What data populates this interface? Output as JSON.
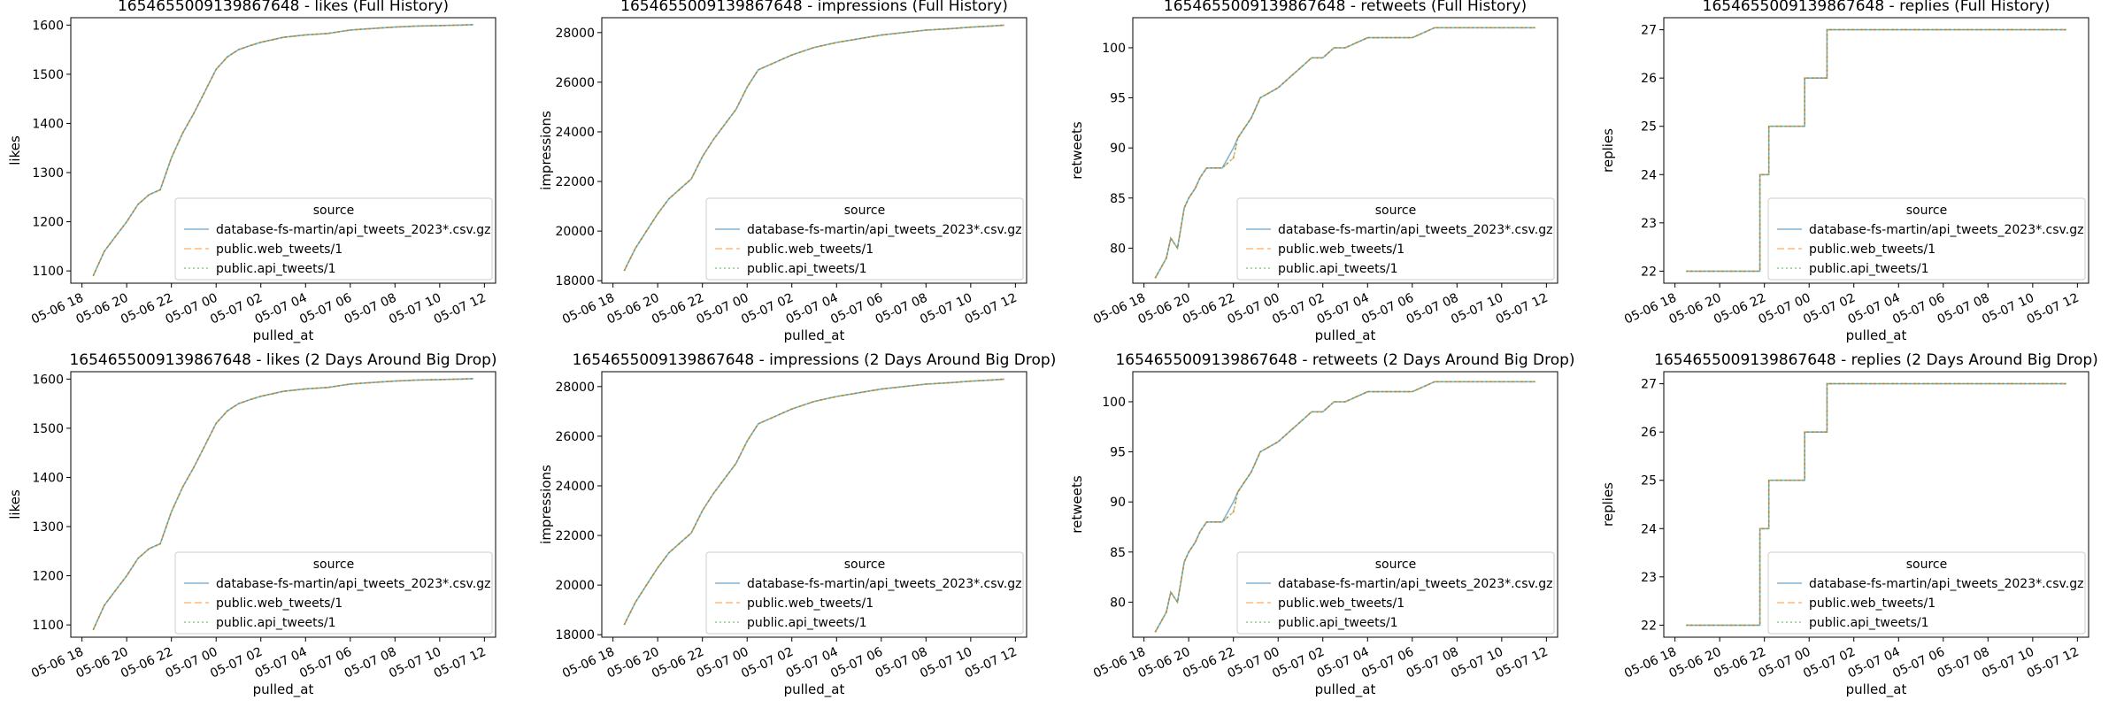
{
  "legend_title": "source",
  "xlabel": "pulled_at",
  "legend_placement": "lower-right",
  "grid": false,
  "series_styles": [
    {
      "name": "database-fs-martin/api_tweets_2023*.csv.gz",
      "color": "#1f77b4",
      "dash": "solid",
      "opacity": 0.55
    },
    {
      "name": "public.web_tweets/1",
      "color": "#ff7f0e",
      "dash": "dashed",
      "opacity": 0.55
    },
    {
      "name": "public.api_tweets/1",
      "color": "#2ca02c",
      "dash": "dotted",
      "opacity": 0.55
    }
  ],
  "x_ticks": [
    "05-06 18",
    "05-06 20",
    "05-06 22",
    "05-07 00",
    "05-07 02",
    "05-07 04",
    "05-07 06",
    "05-07 08",
    "05-07 10",
    "05-07 12"
  ],
  "chart_data": [
    {
      "type": "line",
      "title": "1654655009139867648 - likes (Full History)",
      "xlabel": "pulled_at",
      "ylabel": "likes",
      "xlim": [
        -0.5,
        18.5
      ],
      "ylim": [
        1075,
        1615
      ],
      "yticks": [
        1100,
        1200,
        1300,
        1400,
        1500,
        1600
      ],
      "x": [
        0.5,
        1.0,
        1.5,
        2.0,
        2.5,
        3.0,
        3.5,
        4.0,
        4.5,
        5.0,
        5.5,
        6.0,
        6.5,
        7.0,
        7.5,
        8.0,
        9.0,
        10.0,
        11.0,
        12.0,
        13.0,
        14.0,
        15.0,
        16.0,
        17.0,
        17.5
      ],
      "series": [
        {
          "name": "database-fs-martin/api_tweets_2023*.csv.gz",
          "values": [
            1090,
            1140,
            1170,
            1200,
            1235,
            1255,
            1265,
            1330,
            1380,
            1420,
            1465,
            1510,
            1535,
            1550,
            1558,
            1565,
            1575,
            1580,
            1583,
            1590,
            1593,
            1596,
            1598,
            1599,
            1600,
            1601
          ]
        },
        {
          "name": "public.web_tweets/1",
          "values": [
            1090,
            1140,
            1170,
            1200,
            1235,
            1255,
            1265,
            1330,
            1380,
            1420,
            1465,
            1510,
            1535,
            1550,
            1558,
            1565,
            1575,
            1580,
            1583,
            1590,
            1593,
            1596,
            1598,
            1599,
            1600,
            1601
          ]
        },
        {
          "name": "public.api_tweets/1",
          "values": [
            1090,
            1140,
            1170,
            1200,
            1235,
            1255,
            1265,
            1330,
            1380,
            1420,
            1465,
            1510,
            1535,
            1550,
            1558,
            1565,
            1575,
            1580,
            1583,
            1590,
            1593,
            1596,
            1598,
            1599,
            1600,
            1601
          ]
        }
      ]
    },
    {
      "type": "line",
      "title": "1654655009139867648 - impressions (Full History)",
      "xlabel": "pulled_at",
      "ylabel": "impressions",
      "xlim": [
        -0.5,
        18.5
      ],
      "ylim": [
        17900,
        28600
      ],
      "yticks": [
        18000,
        20000,
        22000,
        24000,
        26000,
        28000
      ],
      "x": [
        0.5,
        1.0,
        1.5,
        2.0,
        2.5,
        3.0,
        3.5,
        4.0,
        4.5,
        5.0,
        5.5,
        6.0,
        6.5,
        7.0,
        8.0,
        9.0,
        10.0,
        11.0,
        12.0,
        13.0,
        14.0,
        15.0,
        16.0,
        17.0,
        17.5
      ],
      "series": [
        {
          "name": "database-fs-martin/api_tweets_2023*.csv.gz",
          "values": [
            18400,
            19300,
            20000,
            20700,
            21300,
            21700,
            22100,
            23000,
            23700,
            24300,
            24900,
            25800,
            26500,
            26700,
            27100,
            27400,
            27600,
            27750,
            27900,
            28000,
            28100,
            28150,
            28220,
            28270,
            28300
          ]
        },
        {
          "name": "public.web_tweets/1",
          "values": [
            18400,
            19300,
            20000,
            20700,
            21300,
            21700,
            22100,
            23000,
            23700,
            24300,
            24900,
            25800,
            26500,
            26700,
            27100,
            27400,
            27600,
            27750,
            27900,
            28000,
            28100,
            28150,
            28220,
            28270,
            28300
          ]
        },
        {
          "name": "public.api_tweets/1",
          "values": [
            18400,
            19300,
            20000,
            20700,
            21300,
            21700,
            22100,
            23000,
            23700,
            24300,
            24900,
            25800,
            26500,
            26700,
            27100,
            27400,
            27600,
            27750,
            27900,
            28000,
            28100,
            28150,
            28220,
            28270,
            28300
          ]
        }
      ]
    },
    {
      "type": "line",
      "title": "1654655009139867648 - retweets (Full History)",
      "xlabel": "pulled_at",
      "ylabel": "retweets",
      "xlim": [
        -0.5,
        18.5
      ],
      "ylim": [
        76.5,
        103
      ],
      "yticks": [
        80,
        85,
        90,
        95,
        100
      ],
      "x": [
        0.5,
        1.0,
        1.2,
        1.5,
        1.8,
        2.0,
        2.3,
        2.5,
        2.8,
        3.0,
        3.5,
        4.0,
        4.2,
        4.5,
        4.8,
        5.2,
        6.0,
        6.5,
        7.0,
        7.5,
        8.0,
        8.5,
        9.0,
        10.0,
        12.0,
        13.0,
        17.5
      ],
      "series": [
        {
          "name": "database-fs-martin/api_tweets_2023*.csv.gz",
          "values": [
            77,
            79,
            81,
            80,
            84,
            85,
            86,
            87,
            88,
            88,
            88,
            90,
            91,
            92,
            93,
            95,
            96,
            97,
            98,
            99,
            99,
            100,
            100,
            101,
            101,
            102,
            102
          ]
        },
        {
          "name": "public.web_tweets/1",
          "values": [
            77,
            79,
            81,
            80,
            84,
            85,
            86,
            87,
            88,
            88,
            88,
            89,
            91,
            92,
            93,
            95,
            96,
            97,
            98,
            99,
            99,
            100,
            100,
            101,
            101,
            102,
            102
          ]
        },
        {
          "name": "public.api_tweets/1",
          "values": [
            77,
            79,
            81,
            80,
            84,
            85,
            86,
            87,
            88,
            88,
            88,
            89,
            91,
            92,
            93,
            95,
            96,
            97,
            98,
            99,
            99,
            100,
            100,
            101,
            101,
            102,
            102
          ]
        }
      ]
    },
    {
      "type": "line",
      "title": "1654655009139867648 - replies (Full History)",
      "xlabel": "pulled_at",
      "ylabel": "replies",
      "xlim": [
        -0.5,
        18.5
      ],
      "ylim": [
        21.75,
        27.25
      ],
      "yticks": [
        22,
        23,
        24,
        25,
        26,
        27
      ],
      "x": [
        0.5,
        3.8,
        3.8,
        4.2,
        4.2,
        5.8,
        5.8,
        6.8,
        6.8,
        17.5
      ],
      "series": [
        {
          "name": "database-fs-martin/api_tweets_2023*.csv.gz",
          "values": [
            22,
            22,
            24,
            24,
            25,
            25,
            26,
            26,
            27,
            27
          ]
        },
        {
          "name": "public.web_tweets/1",
          "values": [
            22,
            22,
            24,
            24,
            25,
            25,
            26,
            26,
            27,
            27
          ]
        },
        {
          "name": "public.api_tweets/1",
          "values": [
            22,
            22,
            24,
            24,
            25,
            25,
            26,
            26,
            27,
            27
          ]
        }
      ]
    },
    {
      "type": "line",
      "title": "1654655009139867648 - likes (2 Days Around Big Drop)",
      "xlabel": "pulled_at",
      "ylabel": "likes",
      "xlim": [
        -0.5,
        18.5
      ],
      "ylim": [
        1075,
        1615
      ],
      "yticks": [
        1100,
        1200,
        1300,
        1400,
        1500,
        1600
      ],
      "x": [
        0.5,
        1.0,
        1.5,
        2.0,
        2.5,
        3.0,
        3.5,
        4.0,
        4.5,
        5.0,
        5.5,
        6.0,
        6.5,
        7.0,
        7.5,
        8.0,
        9.0,
        10.0,
        11.0,
        12.0,
        13.0,
        14.0,
        15.0,
        16.0,
        17.0,
        17.5
      ],
      "series": [
        {
          "name": "database-fs-martin/api_tweets_2023*.csv.gz",
          "values": [
            1090,
            1140,
            1170,
            1200,
            1235,
            1255,
            1265,
            1330,
            1380,
            1420,
            1465,
            1510,
            1535,
            1550,
            1558,
            1565,
            1575,
            1580,
            1583,
            1590,
            1593,
            1596,
            1598,
            1599,
            1600,
            1601
          ]
        },
        {
          "name": "public.web_tweets/1",
          "values": [
            1090,
            1140,
            1170,
            1200,
            1235,
            1255,
            1265,
            1330,
            1380,
            1420,
            1465,
            1510,
            1535,
            1550,
            1558,
            1565,
            1575,
            1580,
            1583,
            1590,
            1593,
            1596,
            1598,
            1599,
            1600,
            1601
          ]
        },
        {
          "name": "public.api_tweets/1",
          "values": [
            1090,
            1140,
            1170,
            1200,
            1235,
            1255,
            1265,
            1330,
            1380,
            1420,
            1465,
            1510,
            1535,
            1550,
            1558,
            1565,
            1575,
            1580,
            1583,
            1590,
            1593,
            1596,
            1598,
            1599,
            1600,
            1601
          ]
        }
      ]
    },
    {
      "type": "line",
      "title": "1654655009139867648 - impressions (2 Days Around Big Drop)",
      "xlabel": "pulled_at",
      "ylabel": "impressions",
      "xlim": [
        -0.5,
        18.5
      ],
      "ylim": [
        17900,
        28600
      ],
      "yticks": [
        18000,
        20000,
        22000,
        24000,
        26000,
        28000
      ],
      "x": [
        0.5,
        1.0,
        1.5,
        2.0,
        2.5,
        3.0,
        3.5,
        4.0,
        4.5,
        5.0,
        5.5,
        6.0,
        6.5,
        7.0,
        8.0,
        9.0,
        10.0,
        11.0,
        12.0,
        13.0,
        14.0,
        15.0,
        16.0,
        17.0,
        17.5
      ],
      "series": [
        {
          "name": "database-fs-martin/api_tweets_2023*.csv.gz",
          "values": [
            18400,
            19300,
            20000,
            20700,
            21300,
            21700,
            22100,
            23000,
            23700,
            24300,
            24900,
            25800,
            26500,
            26700,
            27100,
            27400,
            27600,
            27750,
            27900,
            28000,
            28100,
            28150,
            28220,
            28270,
            28300
          ]
        },
        {
          "name": "public.web_tweets/1",
          "values": [
            18400,
            19300,
            20000,
            20700,
            21300,
            21700,
            22100,
            23000,
            23700,
            24300,
            24900,
            25800,
            26500,
            26700,
            27100,
            27400,
            27600,
            27750,
            27900,
            28000,
            28100,
            28150,
            28220,
            28270,
            28300
          ]
        },
        {
          "name": "public.api_tweets/1",
          "values": [
            18400,
            19300,
            20000,
            20700,
            21300,
            21700,
            22100,
            23000,
            23700,
            24300,
            24900,
            25800,
            26500,
            26700,
            27100,
            27400,
            27600,
            27750,
            27900,
            28000,
            28100,
            28150,
            28220,
            28270,
            28300
          ]
        }
      ]
    },
    {
      "type": "line",
      "title": "1654655009139867648 - retweets (2 Days Around Big Drop)",
      "xlabel": "pulled_at",
      "ylabel": "retweets",
      "xlim": [
        -0.5,
        18.5
      ],
      "ylim": [
        76.5,
        103
      ],
      "yticks": [
        80,
        85,
        90,
        95,
        100
      ],
      "x": [
        0.5,
        1.0,
        1.2,
        1.5,
        1.8,
        2.0,
        2.3,
        2.5,
        2.8,
        3.0,
        3.5,
        4.0,
        4.2,
        4.5,
        4.8,
        5.2,
        6.0,
        6.5,
        7.0,
        7.5,
        8.0,
        8.5,
        9.0,
        10.0,
        12.0,
        13.0,
        17.5
      ],
      "series": [
        {
          "name": "database-fs-martin/api_tweets_2023*.csv.gz",
          "values": [
            77,
            79,
            81,
            80,
            84,
            85,
            86,
            87,
            88,
            88,
            88,
            90,
            91,
            92,
            93,
            95,
            96,
            97,
            98,
            99,
            99,
            100,
            100,
            101,
            101,
            102,
            102
          ]
        },
        {
          "name": "public.web_tweets/1",
          "values": [
            77,
            79,
            81,
            80,
            84,
            85,
            86,
            87,
            88,
            88,
            88,
            89,
            91,
            92,
            93,
            95,
            96,
            97,
            98,
            99,
            99,
            100,
            100,
            101,
            101,
            102,
            102
          ]
        },
        {
          "name": "public.api_tweets/1",
          "values": [
            77,
            79,
            81,
            80,
            84,
            85,
            86,
            87,
            88,
            88,
            88,
            89,
            91,
            92,
            93,
            95,
            96,
            97,
            98,
            99,
            99,
            100,
            100,
            101,
            101,
            102,
            102
          ]
        }
      ]
    },
    {
      "type": "line",
      "title": "1654655009139867648 - replies (2 Days Around Big Drop)",
      "xlabel": "pulled_at",
      "ylabel": "replies",
      "xlim": [
        -0.5,
        18.5
      ],
      "ylim": [
        21.75,
        27.25
      ],
      "yticks": [
        22,
        23,
        24,
        25,
        26,
        27
      ],
      "x": [
        0.5,
        3.8,
        3.8,
        4.2,
        4.2,
        5.8,
        5.8,
        6.8,
        6.8,
        17.5
      ],
      "series": [
        {
          "name": "database-fs-martin/api_tweets_2023*.csv.gz",
          "values": [
            22,
            22,
            24,
            24,
            25,
            25,
            26,
            26,
            27,
            27
          ]
        },
        {
          "name": "public.web_tweets/1",
          "values": [
            22,
            22,
            24,
            24,
            25,
            25,
            26,
            26,
            27,
            27
          ]
        },
        {
          "name": "public.api_tweets/1",
          "values": [
            22,
            22,
            24,
            24,
            25,
            25,
            26,
            26,
            27,
            27
          ]
        }
      ]
    }
  ]
}
